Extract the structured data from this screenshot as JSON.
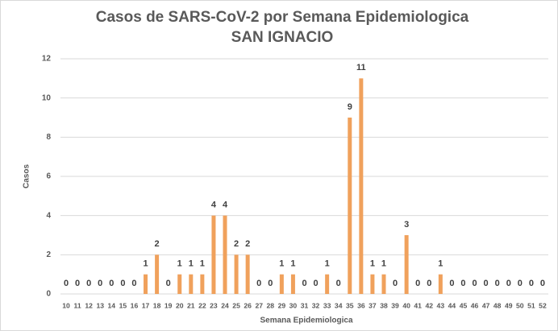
{
  "chart_data": {
    "type": "bar",
    "title": "Casos de SARS-CoV-2 por Semana Epidemiologica",
    "subtitle": "SAN IGNACIO",
    "x_label": "Semana Epidemiologica",
    "y_label": "Casos",
    "categories": [
      "10",
      "11",
      "12",
      "13",
      "14",
      "15",
      "16",
      "17",
      "18",
      "19",
      "20",
      "21",
      "22",
      "23",
      "24",
      "25",
      "26",
      "27",
      "28",
      "29",
      "30",
      "31",
      "32",
      "33",
      "34",
      "35",
      "36",
      "37",
      "38",
      "39",
      "40",
      "41",
      "42",
      "43",
      "44",
      "45",
      "46",
      "47",
      "48",
      "49",
      "50",
      "51",
      "52"
    ],
    "values": [
      0,
      0,
      0,
      0,
      0,
      0,
      0,
      1,
      2,
      0,
      1,
      1,
      1,
      4,
      4,
      2,
      2,
      0,
      0,
      1,
      1,
      0,
      0,
      1,
      0,
      9,
      11,
      1,
      1,
      0,
      3,
      0,
      0,
      1,
      0,
      0,
      0,
      0,
      0,
      0,
      0,
      0,
      0
    ],
    "color": "#f0a15c",
    "ylim": [
      0,
      12
    ],
    "yticks": [
      0,
      2,
      4,
      6,
      8,
      10,
      12
    ],
    "grid": true
  }
}
